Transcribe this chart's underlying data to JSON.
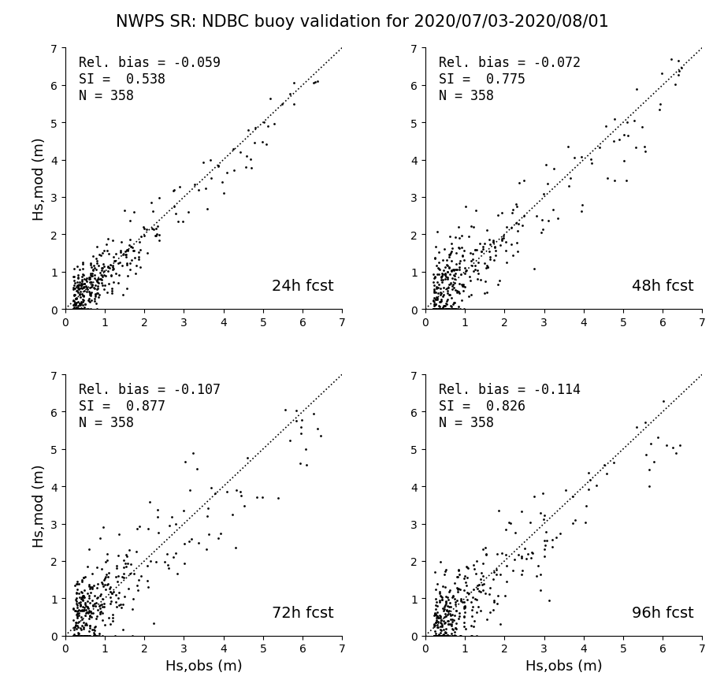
{
  "title": "NWPS SR: NDBC buoy validation for 2020/07/03-2020/08/01",
  "title_fontsize": 15,
  "xlabel": "Hs,obs (m)",
  "ylabel": "Hs,mod (m)",
  "axis_label_fontsize": 13,
  "panels": [
    {
      "label": "24h fcst",
      "rel_bias": -0.059,
      "SI": 0.538,
      "N": 358,
      "seed": 42
    },
    {
      "label": "48h fcst",
      "rel_bias": -0.072,
      "SI": 0.775,
      "N": 358,
      "seed": 43
    },
    {
      "label": "72h fcst",
      "rel_bias": -0.107,
      "SI": 0.877,
      "N": 358,
      "seed": 44
    },
    {
      "label": "96h fcst",
      "rel_bias": -0.114,
      "SI": 0.826,
      "N": 358,
      "seed": 45
    }
  ],
  "xlim": [
    0,
    7
  ],
  "ylim": [
    0,
    7
  ],
  "xticks": [
    0,
    1,
    2,
    3,
    4,
    5,
    6,
    7
  ],
  "yticks": [
    0,
    1,
    2,
    3,
    4,
    5,
    6,
    7
  ],
  "dot_size": 4,
  "dot_color": "black",
  "dotted_line_color": "black",
  "background_color": "white",
  "stats_fontsize": 12,
  "label_fontsize": 14
}
